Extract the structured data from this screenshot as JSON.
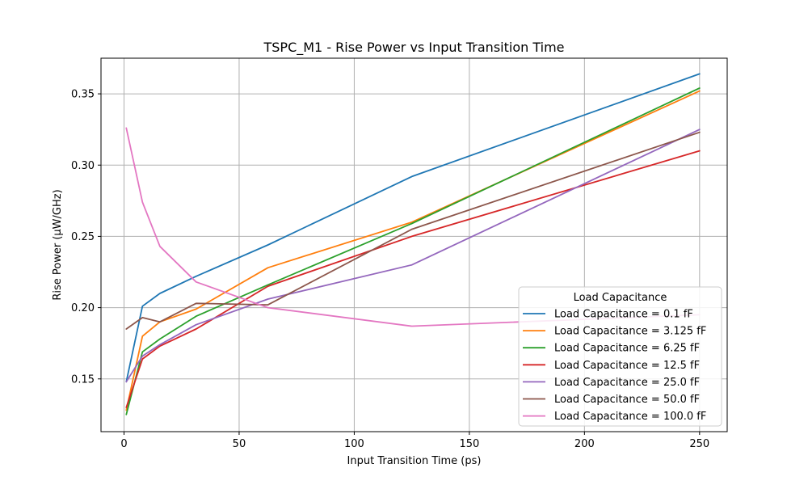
{
  "chart_data": {
    "type": "line",
    "title": "TSPC_M1 - Rise Power vs Input Transition Time",
    "xlabel": "Input Transition Time (ps)",
    "ylabel": "Rise Power (µW/GHz)",
    "xlim": [
      -10,
      262
    ],
    "ylim": [
      0.113,
      0.375
    ],
    "xticks": [
      0,
      50,
      100,
      150,
      200,
      250
    ],
    "yticks": [
      0.15,
      0.2,
      0.25,
      0.3,
      0.35
    ],
    "grid": true,
    "legend": {
      "title": "Load Capacitance",
      "placement": "lower-right"
    },
    "x": [
      1.0,
      8.0,
      15.6,
      31.3,
      62.5,
      125.0,
      250.0
    ],
    "series": [
      {
        "name": "Load Capacitance = 0.1 fF",
        "color": "#1f77b4",
        "values": [
          0.148,
          0.201,
          0.21,
          0.222,
          0.244,
          0.292,
          0.364
        ]
      },
      {
        "name": "Load Capacitance = 3.125 fF",
        "color": "#ff7f0e",
        "values": [
          0.128,
          0.18,
          0.19,
          0.199,
          0.228,
          0.26,
          0.352
        ]
      },
      {
        "name": "Load Capacitance = 6.25 fF",
        "color": "#2ca02c",
        "values": [
          0.125,
          0.169,
          0.178,
          0.194,
          0.216,
          0.259,
          0.354
        ]
      },
      {
        "name": "Load Capacitance = 12.5 fF",
        "color": "#d62728",
        "values": [
          0.13,
          0.164,
          0.173,
          0.185,
          0.215,
          0.25,
          0.31
        ]
      },
      {
        "name": "Load Capacitance = 25.0 fF",
        "color": "#9467bd",
        "values": [
          0.148,
          0.166,
          0.174,
          0.188,
          0.206,
          0.23,
          0.325
        ]
      },
      {
        "name": "Load Capacitance = 50.0 fF",
        "color": "#8c564b",
        "values": [
          0.185,
          0.193,
          0.19,
          0.203,
          0.202,
          0.255,
          0.323
        ]
      },
      {
        "name": "Load Capacitance = 100.0 fF",
        "color": "#e377c2",
        "values": [
          0.326,
          0.274,
          0.243,
          0.218,
          0.2,
          0.187,
          0.195
        ]
      }
    ]
  }
}
